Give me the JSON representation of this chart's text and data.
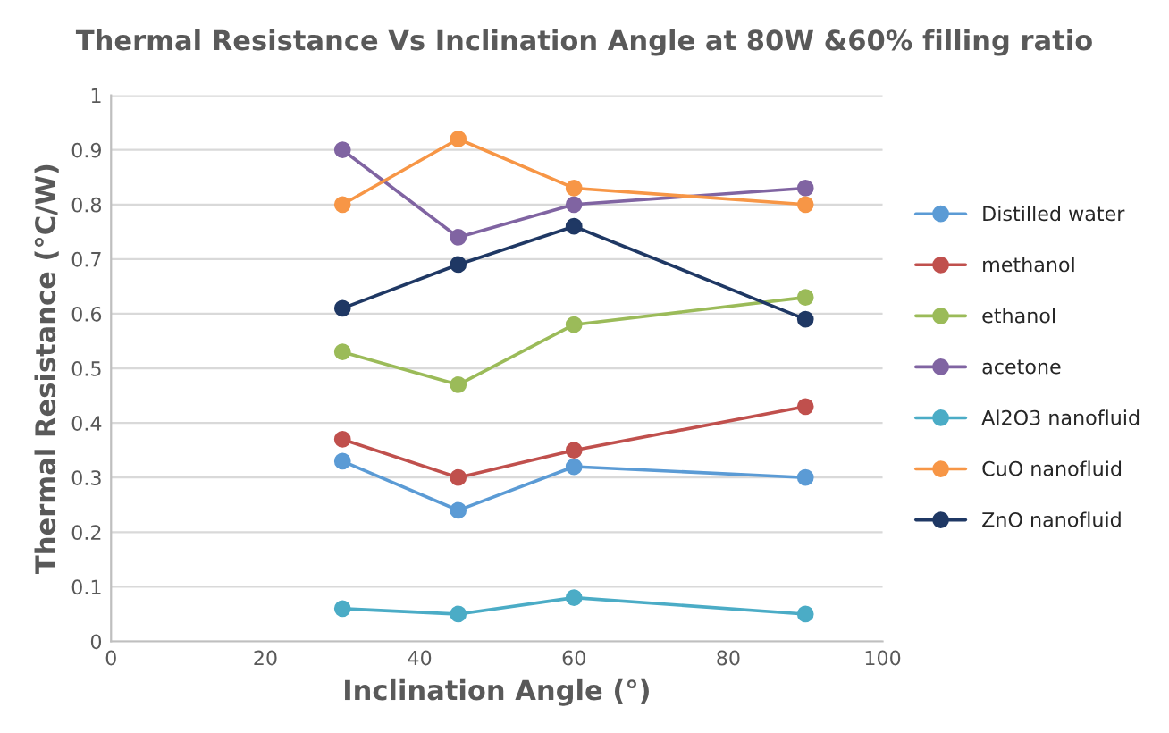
{
  "chart_data": {
    "type": "line",
    "title": "Thermal Resistance Vs Inclination Angle at 80W &60% filling ratio",
    "xlabel": "Inclination Angle (°)",
    "ylabel": "Thermal Resistance (°C/W)",
    "x": [
      30,
      45,
      60,
      90
    ],
    "series": [
      {
        "name": "Distilled water",
        "color": "#5b9bd5",
        "values": [
          0.33,
          0.24,
          0.32,
          0.3
        ]
      },
      {
        "name": "methanol",
        "color": "#c0504d",
        "values": [
          0.37,
          0.3,
          0.35,
          0.43
        ]
      },
      {
        "name": "ethanol",
        "color": "#9bbb59",
        "values": [
          0.53,
          0.47,
          0.58,
          0.63
        ]
      },
      {
        "name": "acetone",
        "color": "#8064a2",
        "values": [
          0.9,
          0.74,
          0.8,
          0.83
        ]
      },
      {
        "name": "Al2O3 nanofluid",
        "color": "#4bacc6",
        "values": [
          0.06,
          0.05,
          0.08,
          0.05
        ]
      },
      {
        "name": "CuO nanofluid",
        "color": "#f79646",
        "values": [
          0.8,
          0.92,
          0.83,
          0.8
        ]
      },
      {
        "name": "ZnO nanofluid",
        "color": "#1f3864",
        "values": [
          0.61,
          0.69,
          0.76,
          0.59
        ]
      }
    ],
    "xlim": [
      0,
      100
    ],
    "xticks": [
      0,
      20,
      40,
      60,
      80,
      100
    ],
    "ylim": [
      0,
      1
    ],
    "yticks": [
      0,
      0.1,
      0.2,
      0.3,
      0.4,
      0.5,
      0.6,
      0.7,
      0.8,
      0.9,
      1
    ],
    "grid": "y",
    "legend": "right",
    "marker": "circle",
    "line_style": "solid"
  }
}
